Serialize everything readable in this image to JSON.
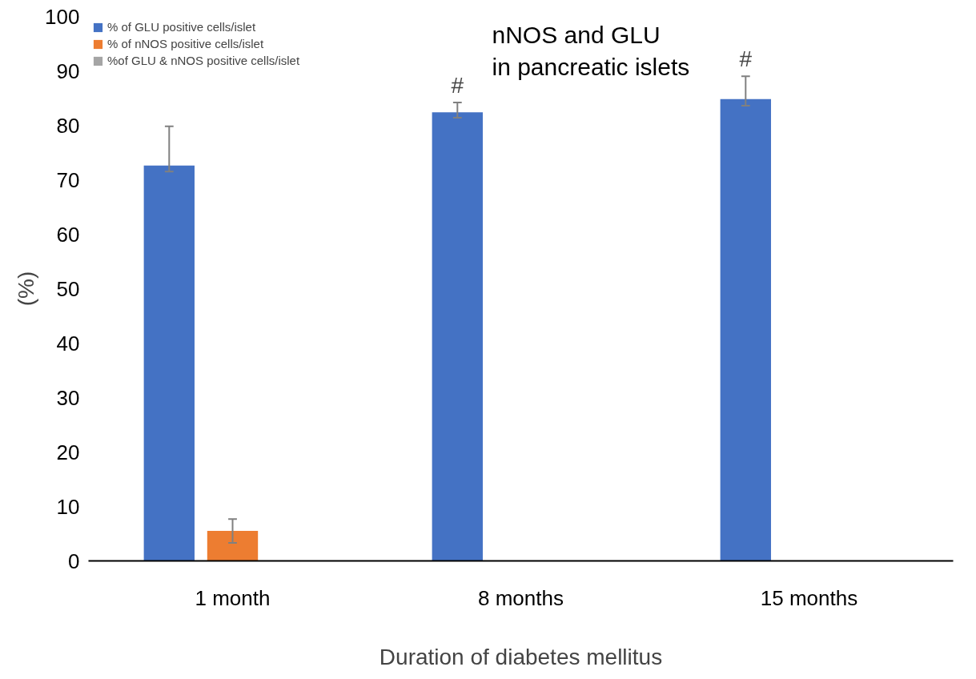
{
  "chart_data": {
    "type": "bar",
    "title": "nNOS and GLU in pancreatic islets",
    "xlabel": "Duration of diabetes mellitus",
    "ylabel": "(%)",
    "categories": [
      "1 month",
      "8 months",
      "15 months"
    ],
    "series": [
      {
        "name": "% of GLU positive cells/islet",
        "color": "#4472c4",
        "values": [
          72.6,
          82.4,
          84.8
        ],
        "errors": [
          [
            71.5,
            79.8
          ],
          [
            81.4,
            84.2
          ],
          [
            83.6,
            89.0
          ]
        ]
      },
      {
        "name": "% of nNOS positive cells/islet",
        "color": "#ed7d31",
        "values": [
          5.5,
          null,
          null
        ],
        "errors": [
          2.2,
          null,
          null
        ]
      },
      {
        "name": "%of GLU & nNOS positive cells/islet",
        "color": "#a5a5a5",
        "values": [
          null,
          null,
          null
        ]
      }
    ],
    "annotations": [
      "#",
      "#"
    ],
    "ylim": [
      0,
      100
    ],
    "yticks": [
      0,
      10,
      20,
      30,
      40,
      50,
      60,
      70,
      80,
      90,
      100
    ],
    "grid": false,
    "legend": "top left"
  }
}
